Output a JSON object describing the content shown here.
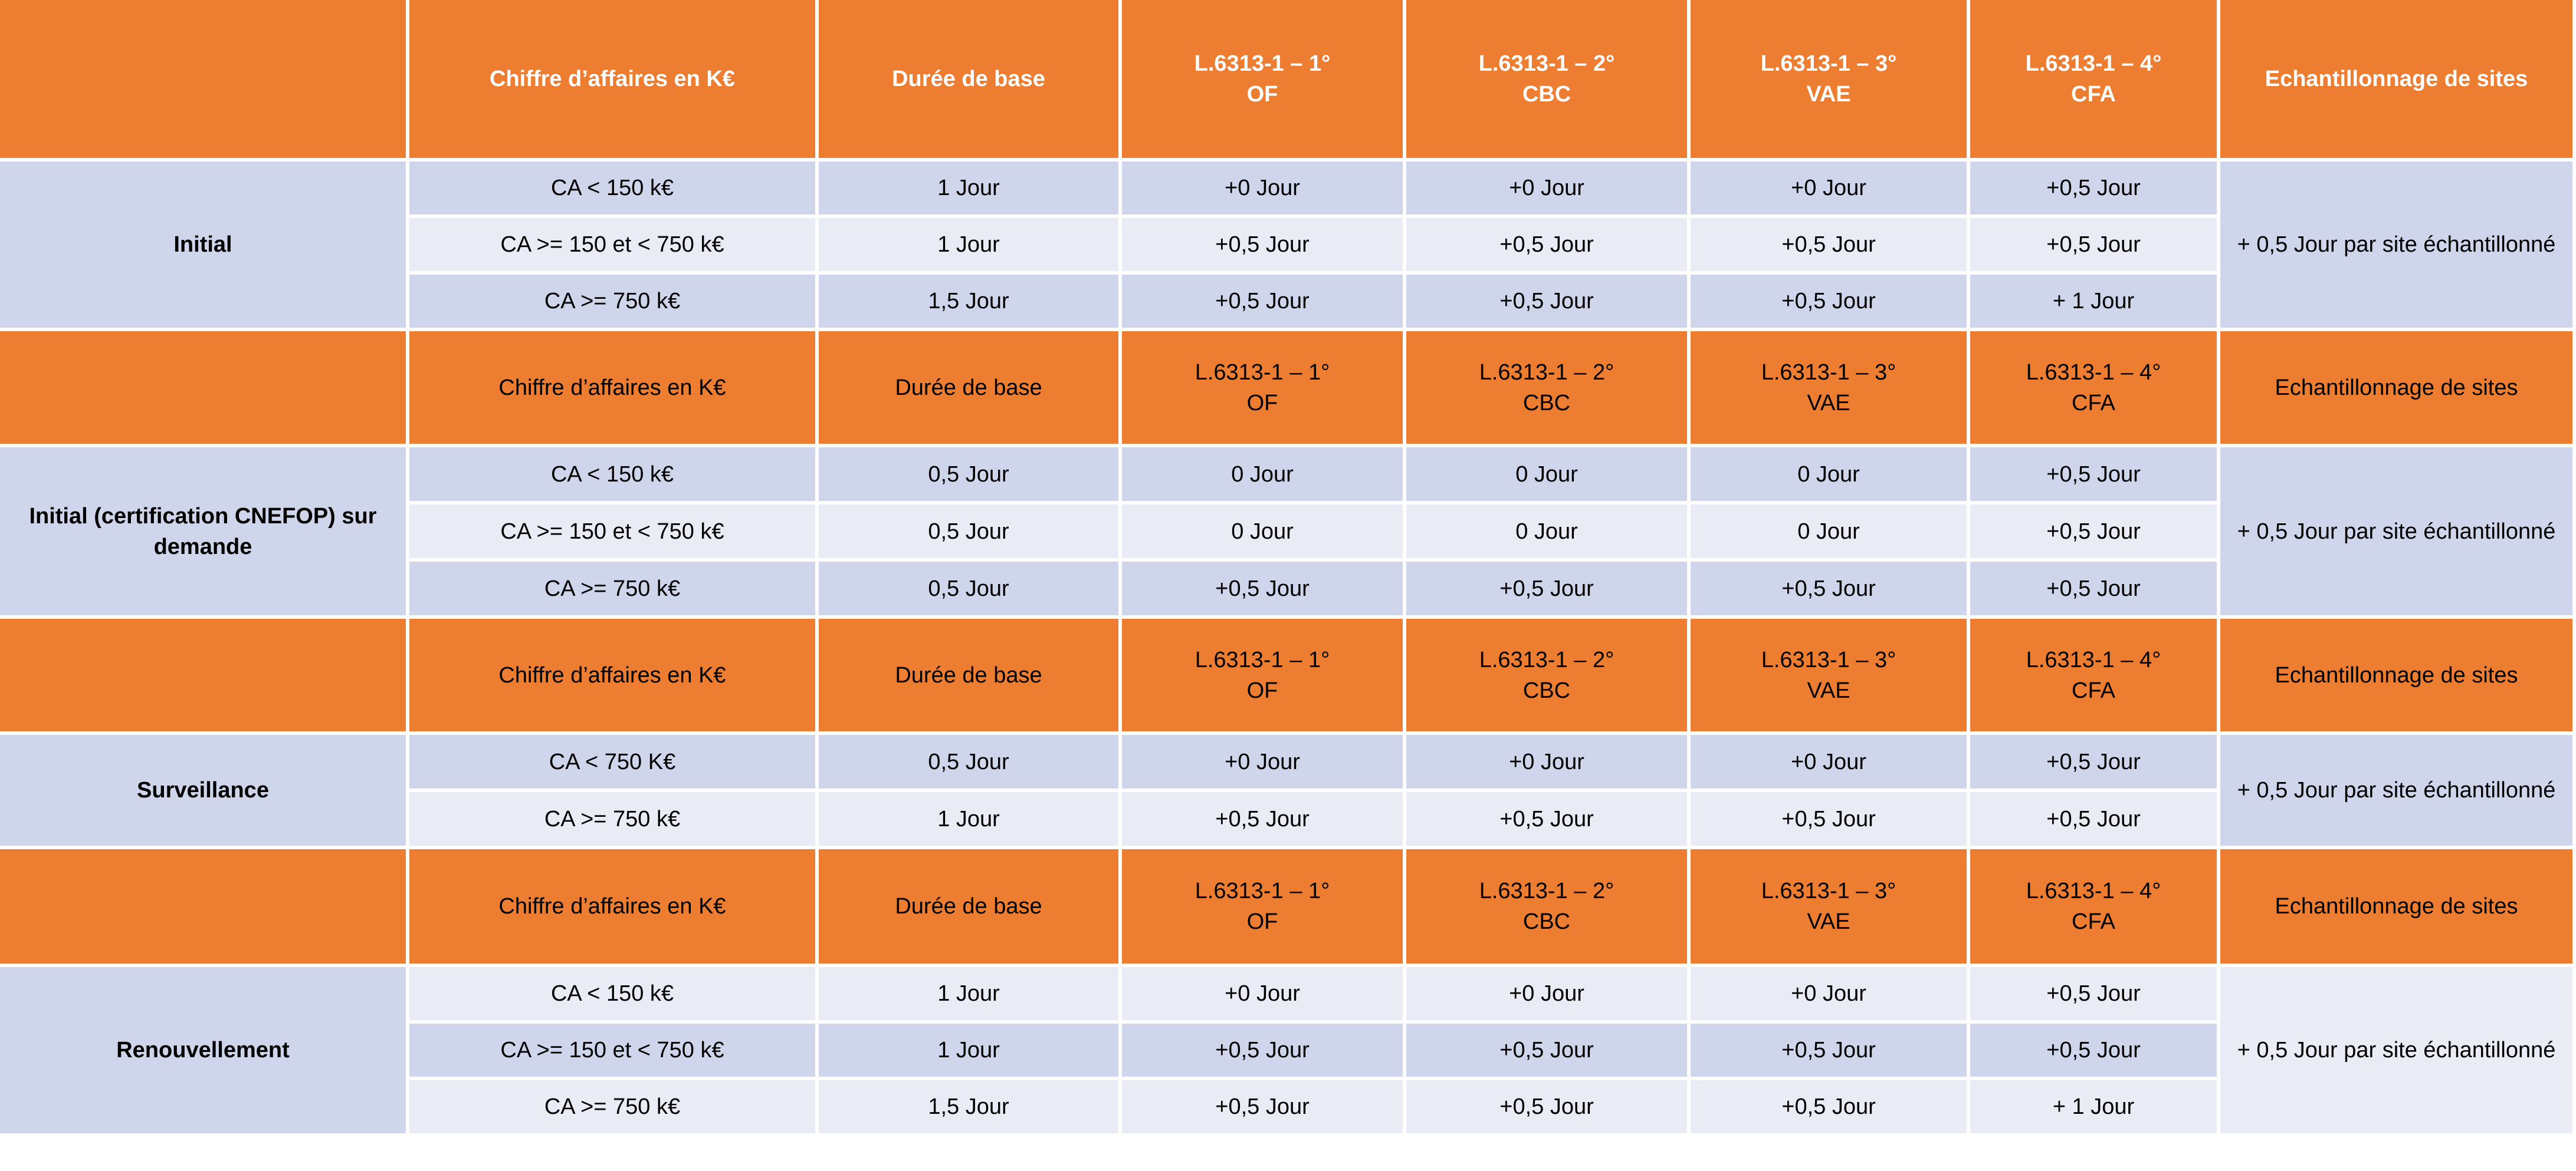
{
  "header": {
    "ca": "Chiffre d’affaires en K€",
    "duree": "Durée de base",
    "l1": [
      "L.6313-1 – 1°",
      "OF"
    ],
    "l2": [
      "L.6313-1 – 2°",
      "CBC"
    ],
    "l3": [
      "L.6313-1 – 3°",
      "VAE"
    ],
    "l4": [
      "L.6313-1 – 4°",
      "CFA"
    ],
    "sites": "Echantillonnage de sites"
  },
  "sampling_text": "+ 0,5 Jour par site échantillonné",
  "sections": [
    {
      "label": "Initial",
      "rows": [
        {
          "ca": "CA < 150 k€",
          "base": "1 Jour",
          "of": "+0 Jour",
          "cbc": "+0 Jour",
          "vae": "+0 Jour",
          "cfa": "+0,5 Jour"
        },
        {
          "ca": "CA >= 150 et < 750 k€",
          "base": "1 Jour",
          "of": "+0,5 Jour",
          "cbc": "+0,5 Jour",
          "vae": "+0,5 Jour",
          "cfa": "+0,5 Jour"
        },
        {
          "ca": "CA >= 750 k€",
          "base": "1,5 Jour",
          "of": "+0,5 Jour",
          "cbc": "+0,5 Jour",
          "vae": "+0,5 Jour",
          "cfa": "+ 1 Jour"
        }
      ]
    },
    {
      "label": "Initial (certification CNEFOP) sur demande",
      "rows": [
        {
          "ca": "CA < 150 k€",
          "base": "0,5 Jour",
          "of": "0 Jour",
          "cbc": "0 Jour",
          "vae": "0 Jour",
          "cfa": "+0,5 Jour"
        },
        {
          "ca": "CA >= 150 et < 750 k€",
          "base": "0,5 Jour",
          "of": "0 Jour",
          "cbc": "0 Jour",
          "vae": "0 Jour",
          "cfa": "+0,5 Jour"
        },
        {
          "ca": "CA >= 750 k€",
          "base": "0,5 Jour",
          "of": "+0,5 Jour",
          "cbc": "+0,5 Jour",
          "vae": "+0,5 Jour",
          "cfa": "+0,5 Jour"
        }
      ]
    },
    {
      "label": "Surveillance",
      "rows": [
        {
          "ca": "CA < 750 K€",
          "base": "0,5 Jour",
          "of": "+0 Jour",
          "cbc": "+0 Jour",
          "vae": "+0 Jour",
          "cfa": "+0,5 Jour"
        },
        {
          "ca": "CA >= 750 k€",
          "base": "1 Jour",
          "of": "+0,5 Jour",
          "cbc": "+0,5 Jour",
          "vae": "+0,5 Jour",
          "cfa": "+0,5 Jour"
        }
      ]
    },
    {
      "label": "Renouvellement",
      "rows": [
        {
          "ca": "CA < 150 k€",
          "base": "1 Jour",
          "of": "+0 Jour",
          "cbc": "+0 Jour",
          "vae": "+0 Jour",
          "cfa": "+0,5 Jour"
        },
        {
          "ca": "CA >= 150 et < 750 k€",
          "base": "1 Jour",
          "of": "+0,5 Jour",
          "cbc": "+0,5 Jour",
          "vae": "+0,5 Jour",
          "cfa": "+0,5 Jour"
        },
        {
          "ca": "CA >= 750 k€",
          "base": "1,5 Jour",
          "of": "+0,5 Jour",
          "cbc": "+0,5 Jour",
          "vae": "+0,5 Jour",
          "cfa": "+ 1 Jour"
        }
      ]
    }
  ]
}
